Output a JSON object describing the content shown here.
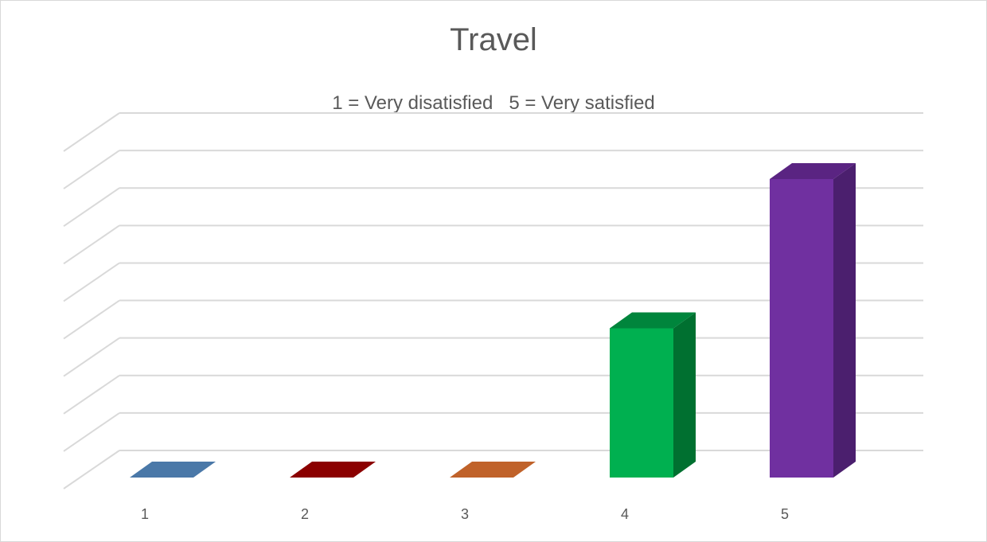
{
  "chart_data": {
    "type": "bar",
    "title": "Travel",
    "subtitle": "1 = Very disatisfied   5 = Very satisfied",
    "categories": [
      "1",
      "2",
      "3",
      "4",
      "5"
    ],
    "values": [
      0,
      0,
      0,
      4,
      8
    ],
    "ylim": [
      0,
      9
    ],
    "grid": true,
    "colors": [
      "#4a78a8",
      "#8b0000",
      "#c0622a",
      "#00b050",
      "#7030a0"
    ],
    "side_colors": [
      "#355a80",
      "#600000",
      "#8f461d",
      "#007030",
      "#4b1f6e"
    ],
    "top_colors": [
      "#4a78a8",
      "#8b0000",
      "#c0622a",
      "#00853c",
      "#5a2482"
    ]
  }
}
